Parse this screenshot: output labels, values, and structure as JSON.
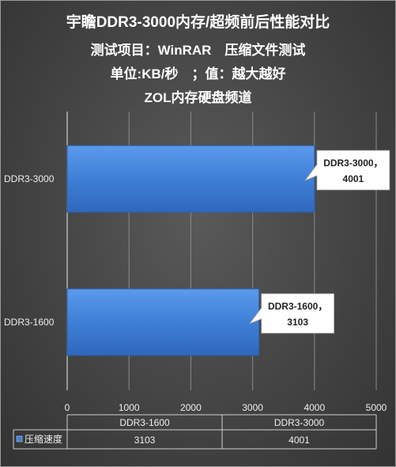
{
  "chart_data": {
    "type": "bar",
    "orientation": "horizontal",
    "title": "宇瞻DDR3-3000内存/超频前后性能对比",
    "subtitle_lines": [
      "测试项目：WinRAR　压缩文件测试",
      "单位:KB/秒　；值：越大越好",
      "ZOL内存硬盘频道"
    ],
    "categories": [
      "DDR3-3000",
      "DDR3-1600"
    ],
    "series": [
      {
        "name": "压缩速度",
        "values": [
          4001,
          3103
        ]
      }
    ],
    "xlim": [
      0,
      5000
    ],
    "xticks": [
      0,
      1000,
      2000,
      3000,
      4000,
      5000
    ],
    "grid": true,
    "callouts": [
      {
        "line1": "DDR3-3000，",
        "line2": "4001"
      },
      {
        "line1": "DDR3-1600，",
        "line2": "3103"
      }
    ],
    "table": {
      "columns": [
        "DDR3-1600",
        "DDR3-3000"
      ],
      "row_label": "压缩速度",
      "row_values": [
        "3103",
        "4001"
      ]
    },
    "colors": {
      "bar": "#3f7fd6",
      "bar_edge": "#2a5fae",
      "callout_bg": "#ffffff"
    }
  }
}
